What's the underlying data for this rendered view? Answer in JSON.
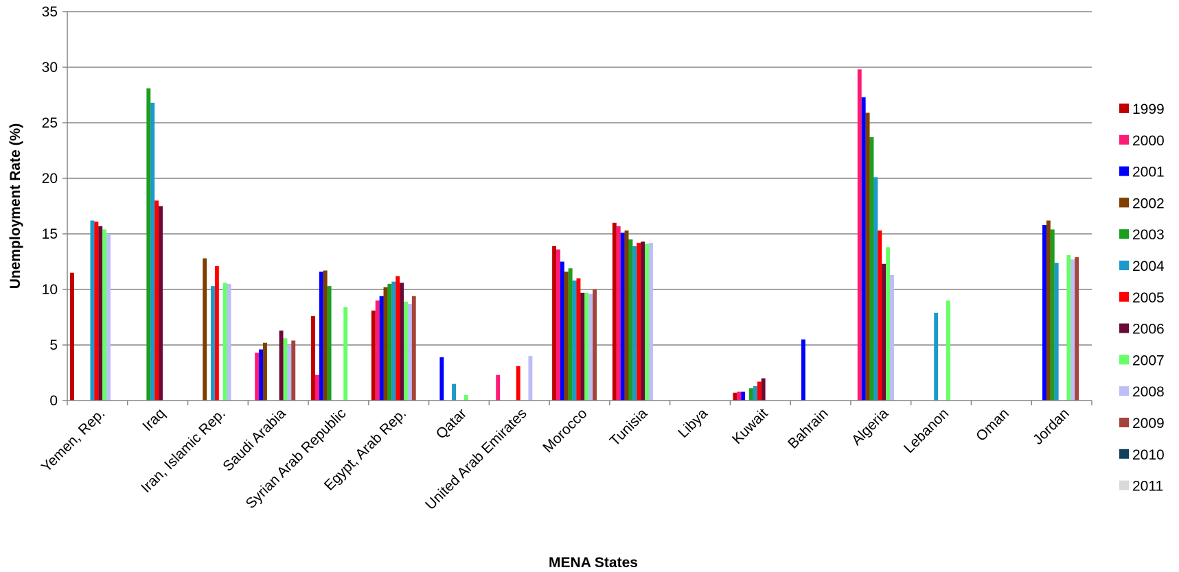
{
  "chart_data": {
    "type": "bar",
    "title": "",
    "xlabel": "MENA States",
    "ylabel": "Unemployment Rate (%)",
    "ylim": [
      0,
      35
    ],
    "yticks": [
      0,
      5,
      10,
      15,
      20,
      25,
      30,
      35
    ],
    "grid": true,
    "legend_position": "right",
    "categories": [
      "Yemen, Rep.",
      "Iraq",
      "Iran, Islamic Rep.",
      "Saudi Arabia",
      "Syrian Arab Republic",
      "Egypt, Arab Rep.",
      "Qatar",
      "United Arab Emirates",
      "Morocco",
      "Tunisia",
      "Libya",
      "Kuwait",
      "Bahrain",
      "Algeria",
      "Lebanon",
      "Oman",
      "Jordan"
    ],
    "series": [
      {
        "name": "1999",
        "color": "#C00000",
        "values": [
          11.5,
          null,
          null,
          null,
          7.6,
          8.1,
          null,
          null,
          13.9,
          16.0,
          null,
          0.7,
          null,
          null,
          null,
          null,
          null
        ]
      },
      {
        "name": "2000",
        "color": "#FF1A75",
        "values": [
          null,
          null,
          null,
          4.3,
          2.3,
          9.0,
          null,
          2.3,
          13.6,
          15.7,
          null,
          0.8,
          null,
          29.8,
          null,
          null,
          null
        ]
      },
      {
        "name": "2001",
        "color": "#0000FF",
        "values": [
          null,
          null,
          null,
          4.6,
          11.6,
          9.4,
          3.9,
          null,
          12.5,
          15.1,
          null,
          0.8,
          5.5,
          27.3,
          null,
          null,
          15.8
        ]
      },
      {
        "name": "2002",
        "color": "#7F3F00",
        "values": [
          null,
          null,
          12.8,
          5.2,
          11.7,
          10.2,
          null,
          null,
          11.6,
          15.3,
          null,
          null,
          null,
          25.9,
          null,
          null,
          16.2
        ]
      },
      {
        "name": "2003",
        "color": "#1E9E1E",
        "values": [
          null,
          28.1,
          null,
          null,
          10.3,
          10.5,
          null,
          null,
          11.9,
          14.5,
          null,
          1.1,
          null,
          23.7,
          null,
          null,
          15.4
        ]
      },
      {
        "name": "2004",
        "color": "#1C9ACC",
        "values": [
          16.2,
          26.8,
          10.3,
          null,
          null,
          10.7,
          1.5,
          null,
          10.8,
          13.9,
          null,
          1.3,
          null,
          20.1,
          7.9,
          null,
          12.4
        ]
      },
      {
        "name": "2005",
        "color": "#FF0000",
        "values": [
          16.1,
          18.0,
          12.1,
          null,
          null,
          11.2,
          null,
          3.1,
          11.0,
          14.2,
          null,
          1.7,
          null,
          15.3,
          null,
          null,
          null
        ]
      },
      {
        "name": "2006",
        "color": "#6B0A36",
        "values": [
          15.7,
          17.5,
          null,
          6.3,
          null,
          10.6,
          null,
          null,
          9.7,
          14.3,
          null,
          2.0,
          null,
          12.3,
          null,
          null,
          null
        ]
      },
      {
        "name": "2007",
        "color": "#66FF66",
        "values": [
          15.4,
          null,
          10.6,
          5.6,
          8.4,
          8.9,
          0.5,
          null,
          9.7,
          14.1,
          null,
          null,
          null,
          13.8,
          9.0,
          null,
          13.1
        ]
      },
      {
        "name": "2008",
        "color": "#BDBDF7",
        "values": [
          15.0,
          null,
          10.5,
          5.0,
          null,
          8.7,
          null,
          4.0,
          9.6,
          14.2,
          null,
          null,
          null,
          11.3,
          null,
          null,
          12.7
        ]
      },
      {
        "name": "2009",
        "color": "#A5433A",
        "values": [
          null,
          null,
          null,
          5.4,
          null,
          9.4,
          null,
          null,
          10.0,
          null,
          null,
          null,
          null,
          null,
          null,
          null,
          12.9
        ]
      },
      {
        "name": "2010",
        "color": "#123F5E",
        "values": [
          null,
          null,
          null,
          null,
          null,
          null,
          null,
          null,
          null,
          null,
          null,
          null,
          null,
          null,
          null,
          null,
          null
        ]
      },
      {
        "name": "2011",
        "color": "#D9D9D9",
        "values": [
          null,
          null,
          null,
          null,
          null,
          null,
          null,
          null,
          null,
          null,
          null,
          null,
          null,
          null,
          null,
          null,
          null
        ]
      }
    ]
  }
}
